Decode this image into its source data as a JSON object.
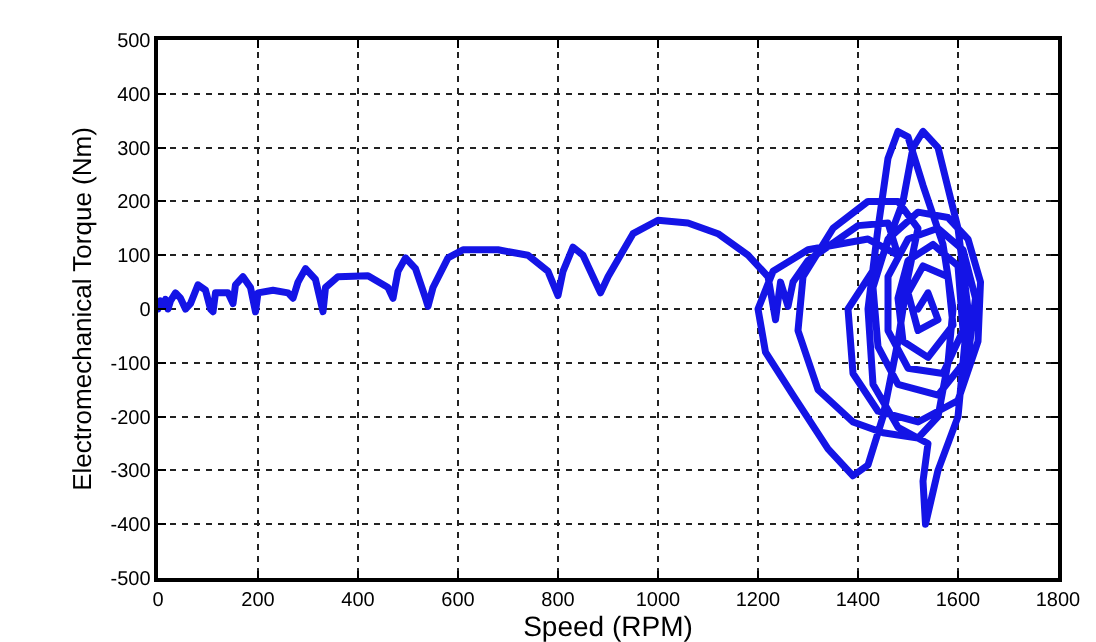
{
  "chart_data": {
    "type": "line",
    "xlabel": "Speed (RPM)",
    "ylabel": "Electromechanical Torque (Nm)",
    "xlim": [
      0,
      1800
    ],
    "ylim": [
      -500,
      500
    ],
    "xticks": [
      0,
      200,
      400,
      600,
      800,
      1000,
      1200,
      1400,
      1600,
      1800
    ],
    "yticks": [
      -500,
      -400,
      -300,
      -200,
      -100,
      0,
      100,
      200,
      300,
      400,
      500
    ],
    "grid": true,
    "marker": "none",
    "line_style": "solid",
    "series": [
      {
        "color": "#1414e6",
        "x": [
          0,
          5,
          10,
          15,
          20,
          25,
          35,
          45,
          55,
          65,
          80,
          95,
          105,
          110,
          115,
          140,
          150,
          155,
          170,
          185,
          195,
          200,
          230,
          260,
          270,
          280,
          295,
          315,
          330,
          335,
          360,
          420,
          460,
          470,
          480,
          495,
          515,
          535,
          540,
          550,
          580,
          610,
          680,
          740,
          780,
          800,
          810,
          830,
          850,
          870,
          885,
          900,
          950,
          1000,
          1060,
          1120,
          1180,
          1220,
          1235,
          1245,
          1260,
          1270,
          1300,
          1400,
          1460,
          1480,
          1420,
          1300,
          1230,
          1200,
          1215,
          1270,
          1340,
          1390,
          1420,
          1450,
          1480,
          1500,
          1520,
          1480,
          1420,
          1350,
          1290,
          1280,
          1320,
          1390,
          1450,
          1520,
          1560,
          1580,
          1590,
          1570,
          1530,
          1500,
          1480,
          1460,
          1440,
          1420,
          1430,
          1480,
          1540,
          1530,
          1535,
          1560,
          1600,
          1610,
          1620,
          1600,
          1560,
          1530,
          1510,
          1490,
          1450,
          1380,
          1390,
          1440,
          1520,
          1600,
          1640,
          1645,
          1620,
          1580,
          1520,
          1460,
          1430,
          1440,
          1480,
          1560,
          1620,
          1635,
          1610,
          1560,
          1500,
          1460,
          1460,
          1500,
          1570,
          1610,
          1600,
          1550,
          1500,
          1480,
          1490,
          1540,
          1590,
          1580,
          1530,
          1500,
          1520,
          1560,
          1540,
          1520
        ],
        "values": [
          0,
          15,
          5,
          18,
          0,
          15,
          30,
          20,
          0,
          10,
          45,
          35,
          0,
          -5,
          30,
          30,
          10,
          45,
          60,
          40,
          -5,
          30,
          35,
          30,
          20,
          50,
          75,
          55,
          -5,
          40,
          60,
          62,
          40,
          20,
          70,
          95,
          75,
          20,
          5,
          40,
          95,
          110,
          110,
          100,
          70,
          25,
          70,
          115,
          100,
          60,
          30,
          60,
          140,
          165,
          160,
          140,
          100,
          60,
          -20,
          50,
          5,
          50,
          90,
          155,
          160,
          100,
          130,
          110,
          70,
          0,
          -80,
          -160,
          -260,
          -310,
          -290,
          -200,
          -60,
          60,
          150,
          200,
          200,
          150,
          60,
          -40,
          -150,
          -210,
          -230,
          -240,
          -200,
          -100,
          0,
          120,
          230,
          320,
          330,
          280,
          150,
          0,
          -140,
          -220,
          -250,
          -320,
          -400,
          -300,
          -200,
          -100,
          0,
          150,
          300,
          330,
          300,
          200,
          100,
          0,
          -120,
          -190,
          -210,
          -170,
          -60,
          50,
          130,
          170,
          180,
          130,
          40,
          -70,
          -140,
          -160,
          -90,
          20,
          110,
          150,
          130,
          60,
          -40,
          -110,
          -120,
          -40,
          80,
          120,
          90,
          20,
          -60,
          -90,
          -30,
          60,
          80,
          30,
          -40,
          -20,
          30,
          0
        ]
      }
    ]
  }
}
